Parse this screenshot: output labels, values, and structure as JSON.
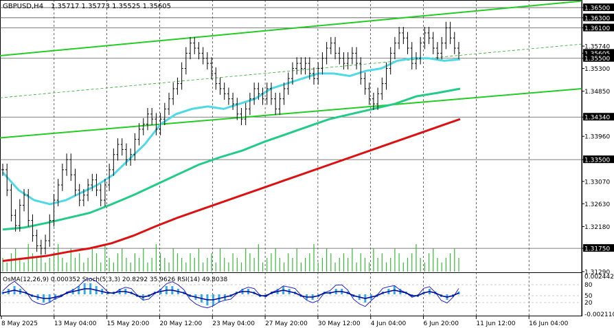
{
  "chart_data": {
    "type": "candlestick",
    "title": "GBPUSD,H4",
    "ohlc_text": "1.35717 1.35773 1.35525 1.35605",
    "ohlc": {
      "open": 1.35717,
      "high": 1.35773,
      "low": 1.35525,
      "close": 1.35605
    },
    "price_range": [
      1.3129,
      1.3665
    ],
    "price_ticks": [
      {
        "value": 1.365,
        "label": "1.36500",
        "line": true
      },
      {
        "value": 1.363,
        "label": "1.36300",
        "line": true
      },
      {
        "value": 1.361,
        "label": "1.36100",
        "line": true
      },
      {
        "value": 1.3574,
        "label": "1.35740",
        "line": false
      },
      {
        "value": 1.356,
        "label": "1.35605",
        "line": false,
        "current": true
      },
      {
        "value": 1.355,
        "label": "1.35500",
        "line": true
      },
      {
        "value": 1.353,
        "label": "1.35300",
        "line": false
      },
      {
        "value": 1.3485,
        "label": "1.34850",
        "line": false
      },
      {
        "value": 1.3434,
        "label": "1.34340",
        "line": true
      },
      {
        "value": 1.3396,
        "label": "1.33960",
        "line": false
      },
      {
        "value": 1.335,
        "label": "1.33500",
        "line": true
      },
      {
        "value": 1.3307,
        "label": "1.33070",
        "line": false
      },
      {
        "value": 1.3263,
        "label": "1.32630",
        "line": false
      },
      {
        "value": 1.3218,
        "label": "1.32180",
        "line": false
      },
      {
        "value": 1.3175,
        "label": "1.31750",
        "line": true
      },
      {
        "value": 1.3129,
        "label": "1.31290",
        "line": false
      }
    ],
    "time_labels": [
      "8 May 2025",
      "13 May 04:00",
      "15 May 20:00",
      "20 May 12:00",
      "23 May 04:00",
      "27 May 20:00",
      "30 May 12:00",
      "4 Jun 04:00",
      "6 Jun 20:00",
      "11 Jun 12:00",
      "16 Jun 04:00"
    ],
    "close_series": [
      1.333,
      1.329,
      1.324,
      1.322,
      1.326,
      1.328,
      1.323,
      1.32,
      1.318,
      1.3175,
      1.319,
      1.323,
      1.327,
      1.33,
      1.333,
      1.335,
      1.332,
      1.329,
      1.327,
      1.328,
      1.33,
      1.331,
      1.329,
      1.327,
      1.33,
      1.333,
      1.336,
      1.338,
      1.337,
      1.335,
      1.336,
      1.339,
      1.341,
      1.342,
      1.344,
      1.343,
      1.341,
      1.343,
      1.345,
      1.347,
      1.349,
      1.35,
      1.353,
      1.356,
      1.358,
      1.357,
      1.356,
      1.355,
      1.354,
      1.352,
      1.35,
      1.349,
      1.348,
      1.347,
      1.346,
      1.344,
      1.343,
      1.345,
      1.347,
      1.349,
      1.348,
      1.347,
      1.349,
      1.347,
      1.345,
      1.347,
      1.349,
      1.351,
      1.353,
      1.354,
      1.353,
      1.354,
      1.352,
      1.351,
      1.353,
      1.355,
      1.357,
      1.358,
      1.356,
      1.355,
      1.354,
      1.355,
      1.356,
      1.354,
      1.351,
      1.349,
      1.347,
      1.346,
      1.348,
      1.35,
      1.353,
      1.356,
      1.358,
      1.36,
      1.359,
      1.357,
      1.354,
      1.355,
      1.358,
      1.36,
      1.359,
      1.357,
      1.356,
      1.358,
      1.361,
      1.359,
      1.357,
      1.35605
    ],
    "channels": [
      {
        "name": "upper",
        "from": 1.3555,
        "to": 1.3663,
        "color": "#22cc22"
      },
      {
        "name": "lower",
        "from": 1.3393,
        "to": 1.349,
        "color": "#22cc22"
      },
      {
        "name": "mid",
        "from": 1.3472,
        "to": 1.3578,
        "color": "#22aa22",
        "dashed": true
      }
    ],
    "moving_averages": [
      {
        "color": "#4dd9e6",
        "values": [
          1.3325,
          1.329,
          1.327,
          1.3262,
          1.327,
          1.3285,
          1.33,
          1.332,
          1.335,
          1.338,
          1.342,
          1.344,
          1.345,
          1.3455,
          1.345,
          1.346,
          1.347,
          1.349,
          1.35,
          1.351,
          1.352,
          1.352,
          1.3515,
          1.3525,
          1.353,
          1.3545,
          1.355,
          1.355,
          1.3545,
          1.3548
        ]
      },
      {
        "color": "#22cc88",
        "values": [
          1.3212,
          1.3216,
          1.3225,
          1.3235,
          1.3245,
          1.3262,
          1.328,
          1.33,
          1.332,
          1.334,
          1.3355,
          1.3368,
          1.3385,
          1.34,
          1.3415,
          1.343,
          1.344,
          1.345,
          1.346,
          1.3475,
          1.3482,
          1.349
        ]
      },
      {
        "color": "#dd1111",
        "values": [
          1.315,
          1.3155,
          1.316,
          1.3168,
          1.3175,
          1.3185,
          1.32,
          1.3218,
          1.3235,
          1.325,
          1.3265,
          1.328,
          1.3295,
          1.331,
          1.3325,
          1.334,
          1.3355,
          1.337,
          1.3385,
          1.34,
          1.3415,
          1.343
        ]
      }
    ],
    "volume": [
      3,
      2,
      4,
      5,
      3,
      2,
      6,
      4,
      3,
      5,
      2,
      3,
      4,
      6,
      3,
      2,
      5,
      3,
      4,
      2,
      3,
      5,
      4,
      2,
      6,
      3,
      2,
      4,
      5,
      3,
      2,
      4,
      3,
      5,
      2,
      3,
      6,
      4,
      3,
      2,
      5,
      4,
      3,
      2,
      4,
      3,
      5,
      2,
      3,
      4,
      2,
      5,
      3,
      2,
      4,
      3,
      2,
      5,
      4,
      3,
      6,
      2,
      3,
      4,
      5,
      3,
      2,
      4,
      3,
      5,
      2,
      3,
      4,
      6,
      2,
      3,
      5,
      4,
      2,
      3,
      4,
      3,
      5,
      2,
      4,
      3,
      2,
      5,
      3,
      4,
      2,
      3,
      5,
      4,
      2,
      3,
      4,
      6,
      3,
      2,
      4,
      5,
      3,
      2,
      3,
      4,
      5,
      3
    ],
    "oscillator": {
      "label": "OsMA(12,26,9) 0.000352  Stoch(5,3,3) 20.8292 35.9626  RSI(14) 49.8038",
      "scale_labels": [
        "0.002442",
        "80",
        "50",
        "20",
        "-0.002110"
      ],
      "histogram": [
        1,
        2,
        3,
        2,
        1,
        -1,
        -2,
        -3,
        -3,
        -2,
        -1,
        1,
        2,
        3,
        4,
        4,
        3,
        2,
        1,
        1,
        2,
        2,
        1,
        -1,
        -2,
        -1,
        1,
        2,
        3,
        3,
        2,
        1,
        -1,
        -2,
        -3,
        -4,
        -4,
        -3,
        -2,
        -1,
        1,
        2,
        2,
        1,
        -1,
        -1,
        1,
        2,
        3,
        2,
        1,
        -1,
        -2,
        -2,
        -1,
        1,
        1,
        2,
        2,
        1,
        -1,
        -2,
        -3,
        -2,
        -1,
        1,
        2,
        3,
        2,
        1,
        -1,
        -1,
        1,
        2,
        1,
        -1,
        -2,
        -1,
        1
      ]
    }
  }
}
